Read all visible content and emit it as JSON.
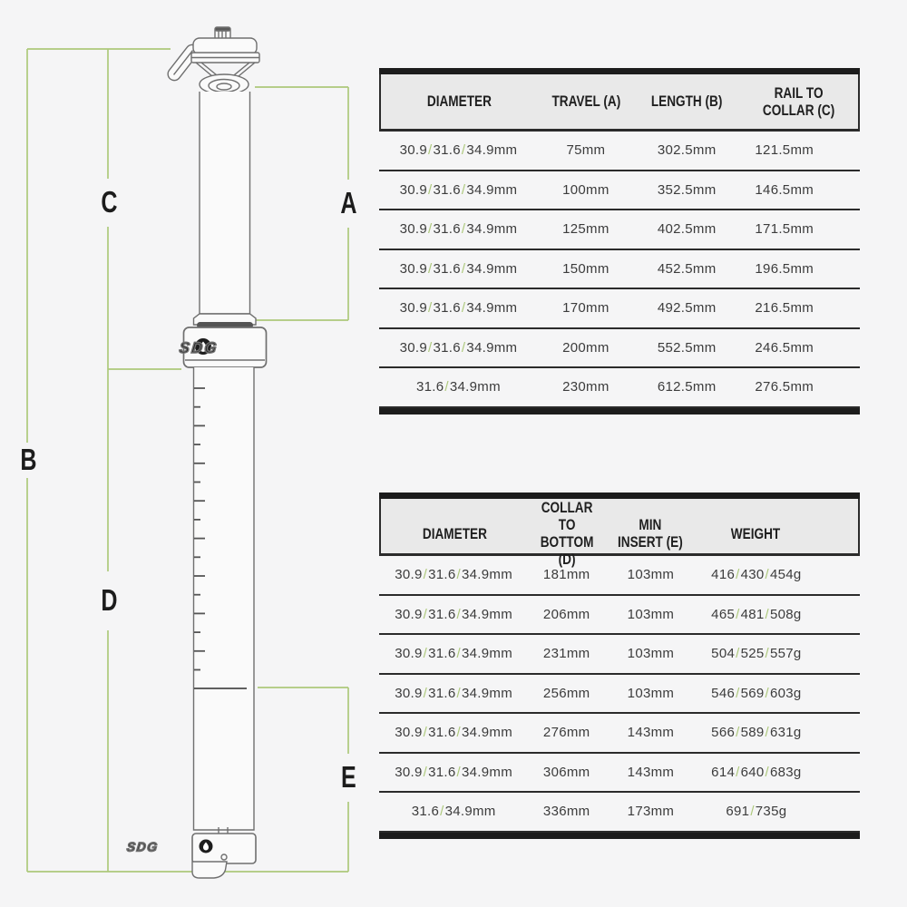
{
  "accent_green": "#adc97b",
  "diagram": {
    "collar_logo": "SDG",
    "bottom_logo": "SDG",
    "dimension_labels": {
      "a": "A",
      "b": "B",
      "c": "C",
      "d": "D",
      "e": "E"
    }
  },
  "table1": {
    "headers": [
      "DIAMETER",
      "TRAVEL (A)",
      "LENGTH (B)",
      "RAIL TO\nCOLLAR (C)"
    ],
    "rows": [
      {
        "diameter": "30.9 / 31.6 / 34.9mm",
        "travel": "75mm",
        "length": "302.5mm",
        "rail_to_collar": "121.5mm"
      },
      {
        "diameter": "30.9 / 31.6 / 34.9mm",
        "travel": "100mm",
        "length": "352.5mm",
        "rail_to_collar": "146.5mm"
      },
      {
        "diameter": "30.9 / 31.6 / 34.9mm",
        "travel": "125mm",
        "length": "402.5mm",
        "rail_to_collar": "171.5mm"
      },
      {
        "diameter": "30.9 / 31.6 / 34.9mm",
        "travel": "150mm",
        "length": "452.5mm",
        "rail_to_collar": "196.5mm"
      },
      {
        "diameter": "30.9 / 31.6 / 34.9mm",
        "travel": "170mm",
        "length": "492.5mm",
        "rail_to_collar": "216.5mm"
      },
      {
        "diameter": "30.9 / 31.6 / 34.9mm",
        "travel": "200mm",
        "length": "552.5mm",
        "rail_to_collar": "246.5mm"
      },
      {
        "diameter": "31.6 / 34.9mm",
        "travel": "230mm",
        "length": "612.5mm",
        "rail_to_collar": "276.5mm"
      }
    ]
  },
  "table2": {
    "headers": [
      "DIAMETER",
      "COLLAR TO\nBOTTOM (D)",
      "MIN\nINSERT (E)",
      "WEIGHT"
    ],
    "rows": [
      {
        "diameter": "30.9 / 31.6 / 34.9mm",
        "collar_to_bottom": "181mm",
        "min_insert": "103mm",
        "weight": "416 / 430 / 454g"
      },
      {
        "diameter": "30.9 / 31.6 / 34.9mm",
        "collar_to_bottom": "206mm",
        "min_insert": "103mm",
        "weight": "465 / 481 / 508g"
      },
      {
        "diameter": "30.9 / 31.6 / 34.9mm",
        "collar_to_bottom": "231mm",
        "min_insert": "103mm",
        "weight": "504 / 525 / 557g"
      },
      {
        "diameter": "30.9 / 31.6 / 34.9mm",
        "collar_to_bottom": "256mm",
        "min_insert": "103mm",
        "weight": "546 / 569 / 603g"
      },
      {
        "diameter": "30.9 / 31.6 / 34.9mm",
        "collar_to_bottom": "276mm",
        "min_insert": "143mm",
        "weight": "566 / 589 / 631g"
      },
      {
        "diameter": "30.9 / 31.6 / 34.9mm",
        "collar_to_bottom": "306mm",
        "min_insert": "143mm",
        "weight": "614 / 640 / 683g"
      },
      {
        "diameter": "31.6 / 34.9mm",
        "collar_to_bottom": "336mm",
        "min_insert": "173mm",
        "weight": "691 / 735g"
      }
    ]
  }
}
